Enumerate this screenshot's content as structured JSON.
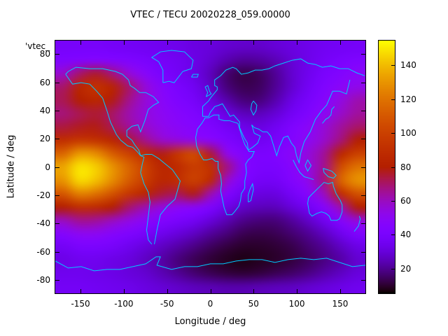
{
  "chart_data": {
    "type": "heatmap",
    "title": "VTEC / TECU 20020228_059.00000",
    "key_label": "'vtec_",
    "xlabel": "Longitude / deg",
    "ylabel": "Latitude / deg",
    "xlim": [
      -180,
      180
    ],
    "ylim": [
      -90,
      90
    ],
    "x_ticks": [
      -150,
      -100,
      -50,
      0,
      50,
      100,
      150
    ],
    "y_ticks": [
      -80,
      -60,
      -40,
      -20,
      0,
      20,
      40,
      60,
      80
    ],
    "grid": false,
    "legend_position": "top-left-clipped",
    "palette": "gnuplot-pm3d-rgbformulae-7-5-15",
    "coast_color": "#00ccff",
    "colorbar": {
      "side": "right",
      "min": 5,
      "max": 155,
      "ticks": [
        20,
        40,
        60,
        80,
        100,
        120,
        140
      ],
      "units": "TECU"
    },
    "lon": [
      -180,
      -160,
      -140,
      -120,
      -100,
      -80,
      -60,
      -40,
      -20,
      0,
      20,
      40,
      60,
      80,
      100,
      120,
      140,
      160,
      180
    ],
    "lat": [
      90,
      80,
      70,
      60,
      50,
      40,
      30,
      20,
      10,
      0,
      -10,
      -20,
      -30,
      -40,
      -50,
      -60,
      -70,
      -80,
      -90
    ],
    "values_tecu": [
      [
        38,
        38,
        38,
        37,
        36,
        35,
        34,
        33,
        31,
        30,
        28,
        27,
        27,
        29,
        31,
        33,
        35,
        36,
        37
      ],
      [
        42,
        44,
        45,
        44,
        42,
        40,
        37,
        35,
        32,
        28,
        23,
        20,
        21,
        24,
        29,
        33,
        37,
        40,
        42
      ],
      [
        58,
        70,
        76,
        68,
        56,
        47,
        40,
        36,
        32,
        25,
        16,
        12,
        14,
        20,
        28,
        34,
        40,
        44,
        48
      ],
      [
        70,
        85,
        92,
        84,
        70,
        56,
        46,
        40,
        35,
        27,
        17,
        13,
        14,
        20,
        28,
        36,
        43,
        48,
        52
      ],
      [
        72,
        80,
        85,
        78,
        66,
        56,
        48,
        42,
        38,
        31,
        23,
        17,
        17,
        23,
        32,
        39,
        46,
        54,
        62
      ],
      [
        68,
        72,
        75,
        70,
        62,
        55,
        50,
        46,
        42,
        37,
        31,
        25,
        25,
        29,
        36,
        42,
        50,
        58,
        64
      ],
      [
        74,
        77,
        78,
        72,
        65,
        58,
        52,
        48,
        45,
        42,
        37,
        33,
        31,
        35,
        42,
        48,
        56,
        64,
        70
      ],
      [
        90,
        95,
        92,
        85,
        75,
        66,
        58,
        55,
        52,
        48,
        42,
        37,
        35,
        38,
        44,
        50,
        58,
        68,
        80
      ],
      [
        115,
        132,
        128,
        112,
        100,
        88,
        78,
        95,
        105,
        75,
        52,
        44,
        40,
        42,
        48,
        55,
        65,
        85,
        100
      ],
      [
        135,
        150,
        145,
        130,
        115,
        100,
        85,
        88,
        98,
        92,
        68,
        46,
        40,
        40,
        46,
        54,
        66,
        105,
        120
      ],
      [
        130,
        148,
        142,
        128,
        112,
        98,
        85,
        90,
        100,
        88,
        58,
        42,
        37,
        37,
        44,
        52,
        68,
        115,
        130
      ],
      [
        110,
        125,
        120,
        108,
        95,
        85,
        75,
        72,
        78,
        62,
        44,
        34,
        31,
        31,
        37,
        46,
        60,
        90,
        108
      ],
      [
        80,
        90,
        88,
        80,
        70,
        62,
        55,
        50,
        48,
        42,
        33,
        27,
        25,
        25,
        30,
        36,
        46,
        62,
        80
      ],
      [
        60,
        66,
        65,
        60,
        54,
        48,
        44,
        40,
        36,
        30,
        24,
        19,
        17,
        17,
        21,
        27,
        35,
        46,
        56
      ],
      [
        45,
        50,
        50,
        46,
        42,
        38,
        34,
        30,
        26,
        21,
        17,
        13,
        12,
        13,
        16,
        20,
        26,
        34,
        42
      ],
      [
        36,
        40,
        40,
        38,
        34,
        30,
        26,
        22,
        18,
        14,
        11,
        9,
        9,
        10,
        12,
        16,
        20,
        26,
        32
      ],
      [
        32,
        34,
        34,
        32,
        30,
        26,
        22,
        17,
        13,
        10,
        8,
        7,
        8,
        9,
        11,
        14,
        18,
        22,
        28
      ],
      [
        34,
        34,
        33,
        32,
        30,
        28,
        24,
        20,
        16,
        13,
        11,
        10,
        11,
        13,
        15,
        18,
        22,
        26,
        30
      ],
      [
        36,
        36,
        35,
        34,
        33,
        31,
        29,
        27,
        25,
        24,
        23,
        23,
        24,
        25,
        26,
        28,
        30,
        32,
        34
      ]
    ]
  }
}
